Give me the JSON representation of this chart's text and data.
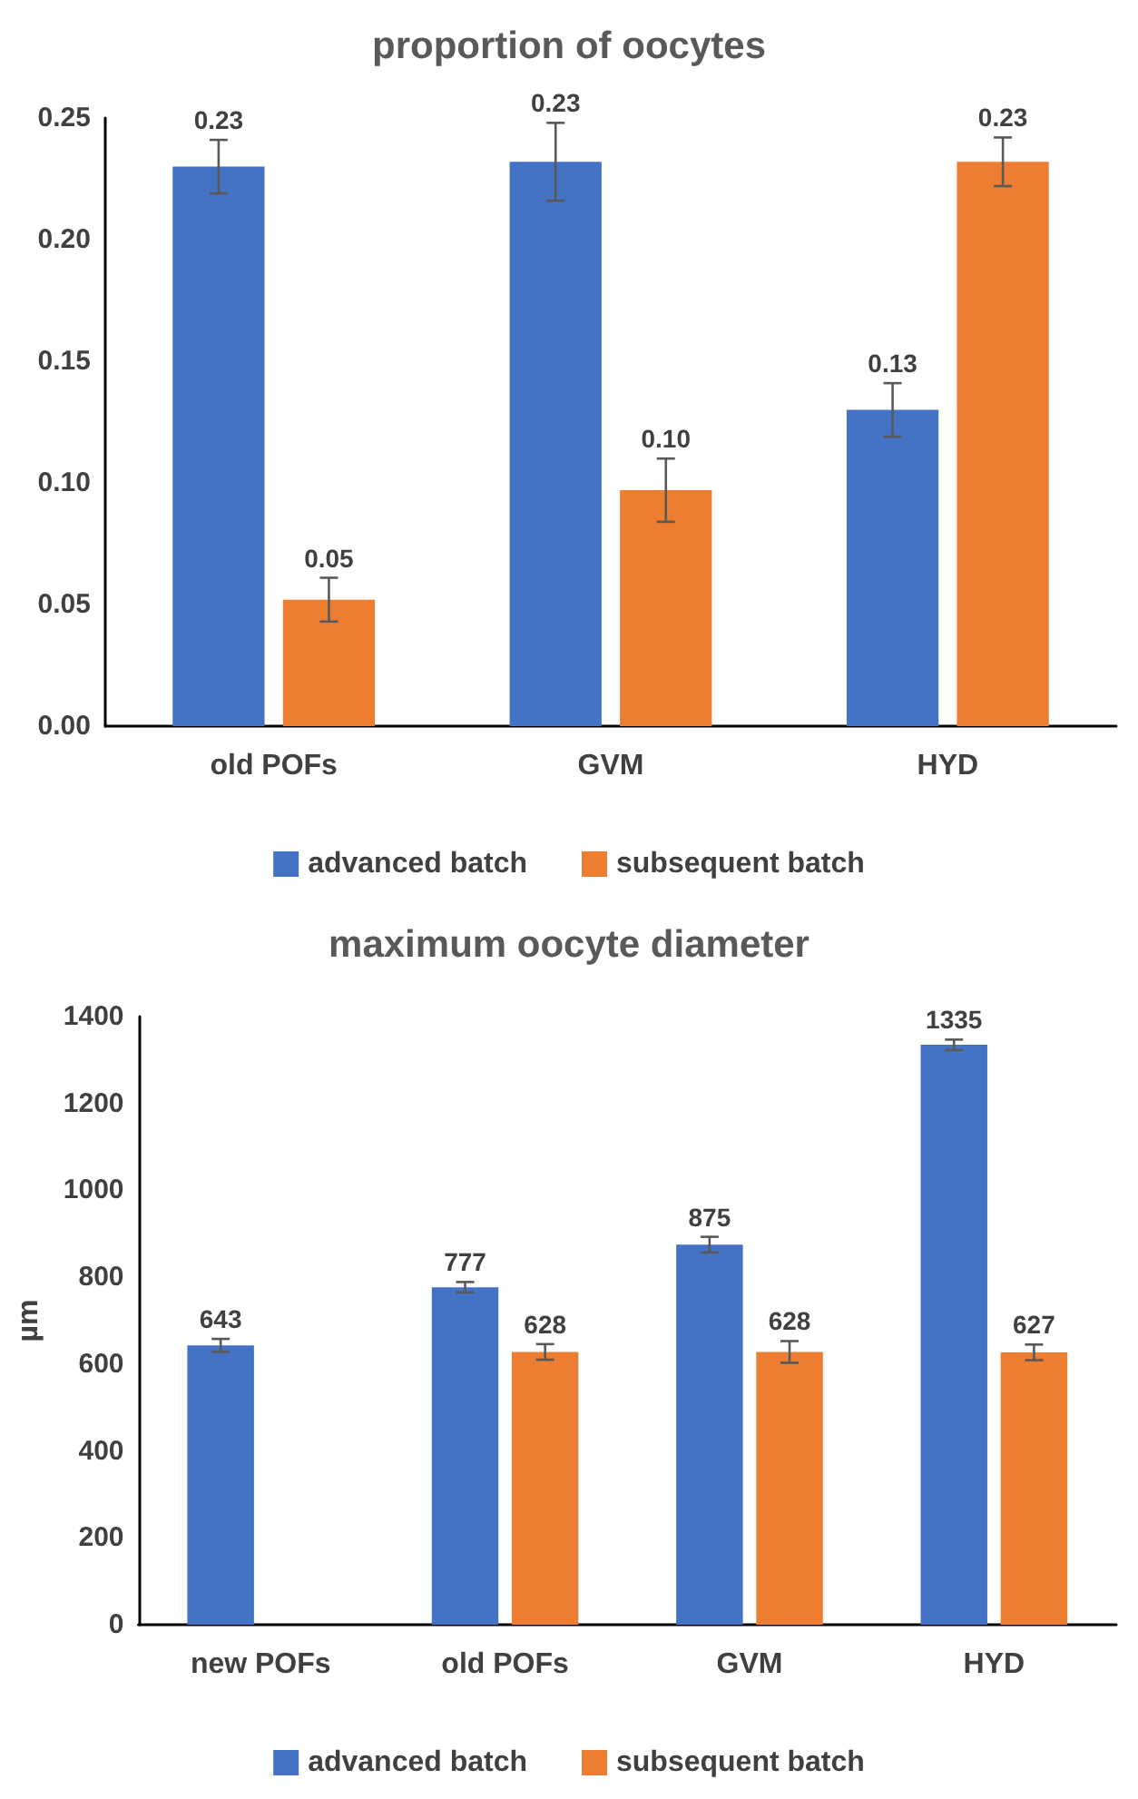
{
  "chart_data": [
    {
      "type": "bar",
      "title": "proportion of oocytes",
      "categories": [
        "old POFs",
        "GVM",
        "HYD"
      ],
      "series": [
        {
          "name": "advanced batch",
          "color": "#4472c4",
          "values": [
            0.23,
            0.232,
            0.13
          ],
          "errors": [
            0.011,
            0.016,
            0.011
          ],
          "value_labels": [
            "0.23",
            "0.23",
            "0.13"
          ]
        },
        {
          "name": "subsequent batch",
          "color": "#ed7d31",
          "values": [
            0.052,
            0.097,
            0.232
          ],
          "errors": [
            0.009,
            0.013,
            0.01
          ],
          "value_labels": [
            "0.05",
            "0.10",
            "0.23"
          ]
        }
      ],
      "ylim": [
        0,
        0.25
      ],
      "yticks": [
        {
          "value": 0,
          "label": "0.00"
        },
        {
          "value": 0.05,
          "label": "0.05"
        },
        {
          "value": 0.1,
          "label": "0.10"
        },
        {
          "value": 0.15,
          "label": "0.15"
        },
        {
          "value": 0.2,
          "label": "0.20"
        },
        {
          "value": 0.25,
          "label": "0.25"
        }
      ],
      "legend": "bottom"
    },
    {
      "type": "bar",
      "title": "maximum oocyte diameter",
      "ylabel": "µm",
      "categories": [
        "new POFs",
        "old POFs",
        "GVM",
        "HYD"
      ],
      "series": [
        {
          "name": "advanced batch",
          "color": "#4472c4",
          "values": [
            643,
            777,
            875,
            1335
          ],
          "errors": [
            15,
            12,
            18,
            12
          ]
        },
        {
          "name": "subsequent batch",
          "color": "#ed7d31",
          "values": [
            null,
            628,
            628,
            627
          ],
          "errors": [
            null,
            18,
            25,
            18
          ]
        }
      ],
      "ylim": [
        0,
        1400
      ],
      "yticks": [
        0,
        200,
        400,
        600,
        800,
        1000,
        1200,
        1400
      ],
      "data_labels": true,
      "legend": "bottom"
    }
  ]
}
